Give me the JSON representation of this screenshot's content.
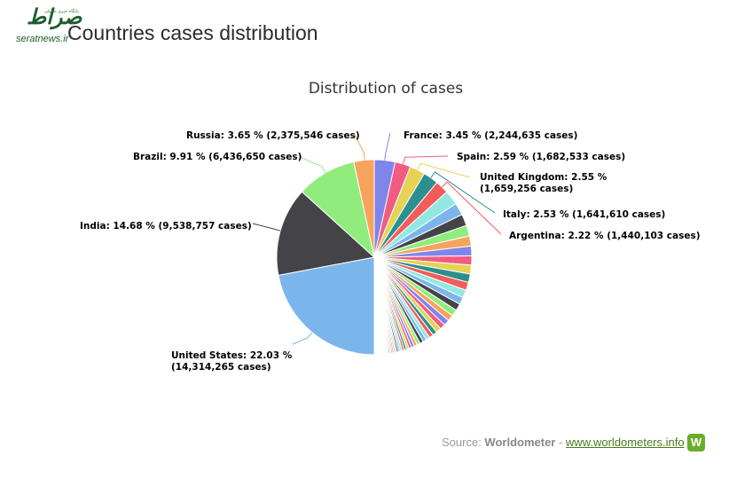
{
  "watermark": {
    "mark": "صراط",
    "tagline": "پایگاه خبری تحلیلی",
    "url": "seratnews.ir"
  },
  "page": {
    "title": "Countries cases distribution"
  },
  "footer": {
    "source_prefix": "Source: ",
    "source_name": "Worldometer",
    "separator": " - ",
    "source_link": "www.worldometers.info",
    "logo_letter": "W"
  },
  "chart_data": {
    "type": "pie",
    "title": "Distribution of cases",
    "slices": [
      {
        "name": "United States",
        "percent": 22.03,
        "cases": "14,314,265",
        "label_lines": [
          "United States: 22.03 %",
          "(14,314,265 cases)"
        ],
        "color": "#7cb5ec"
      },
      {
        "name": "India",
        "percent": 14.68,
        "cases": "9,538,757",
        "label_lines": [
          "India: 14.68 % (9,538,757 cases)"
        ],
        "color": "#434348"
      },
      {
        "name": "Brazil",
        "percent": 9.91,
        "cases": "6,436,650",
        "label_lines": [
          "Brazil: 9.91 % (6,436,650 cases)"
        ],
        "color": "#90ed7d"
      },
      {
        "name": "Russia",
        "percent": 3.65,
        "cases": "2,375,546",
        "label_lines": [
          "Russia: 3.65 % (2,375,546 cases)"
        ],
        "color": "#f7a35c"
      },
      {
        "name": "France",
        "percent": 3.45,
        "cases": "2,244,635",
        "label_lines": [
          "France: 3.45 % (2,244,635 cases)"
        ],
        "color": "#8085e9"
      },
      {
        "name": "Spain",
        "percent": 2.59,
        "cases": "1,682,533",
        "label_lines": [
          "Spain: 2.59 % (1,682,533 cases)"
        ],
        "color": "#f15c80"
      },
      {
        "name": "United Kingdom",
        "percent": 2.55,
        "cases": "1,659,256",
        "label_lines": [
          "United Kingdom: 2.55 %",
          "(1,659,256 cases)"
        ],
        "color": "#e4d354"
      },
      {
        "name": "Italy",
        "percent": 2.53,
        "cases": "1,641,610",
        "label_lines": [
          "Italy: 2.53 % (1,641,610 cases)"
        ],
        "color": "#2b908f"
      },
      {
        "name": "Argentina",
        "percent": 2.22,
        "cases": "1,440,103",
        "label_lines": [
          "Argentina: 2.22 % (1,440,103 cases)"
        ],
        "color": "#f45b5b"
      }
    ],
    "other_slices": [
      1.9,
      1.6,
      1.5,
      1.4,
      1.3,
      1.25,
      1.2,
      1.15,
      1.1,
      1.05,
      1.0,
      0.95,
      0.9,
      0.85,
      0.8,
      0.75,
      0.7,
      0.65,
      0.6,
      0.55,
      0.5,
      0.48,
      0.45,
      0.42,
      0.4,
      0.38,
      0.35,
      0.33,
      0.3,
      0.28,
      0.26,
      0.24,
      0.22,
      0.2,
      0.19,
      0.18,
      0.17,
      0.16,
      0.15,
      0.14,
      0.13,
      0.12,
      0.11,
      0.1,
      0.1,
      0.09,
      0.09,
      0.08,
      0.08,
      0.07,
      0.07,
      0.06,
      0.06,
      0.05,
      0.05,
      0.05,
      0.04,
      0.04,
      0.04,
      0.03,
      0.03,
      0.03,
      0.03,
      0.02,
      0.02,
      0.02,
      0.02,
      0.02,
      0.01,
      0.01,
      0.01,
      0.01,
      0.01,
      0.01,
      0.01,
      0.01
    ],
    "palette": [
      "#91e8e1",
      "#7cb5ec",
      "#434348",
      "#90ed7d",
      "#f7a35c",
      "#8085e9",
      "#f15c80",
      "#e4d354",
      "#2b908f",
      "#f45b5b"
    ],
    "legend": "none"
  }
}
